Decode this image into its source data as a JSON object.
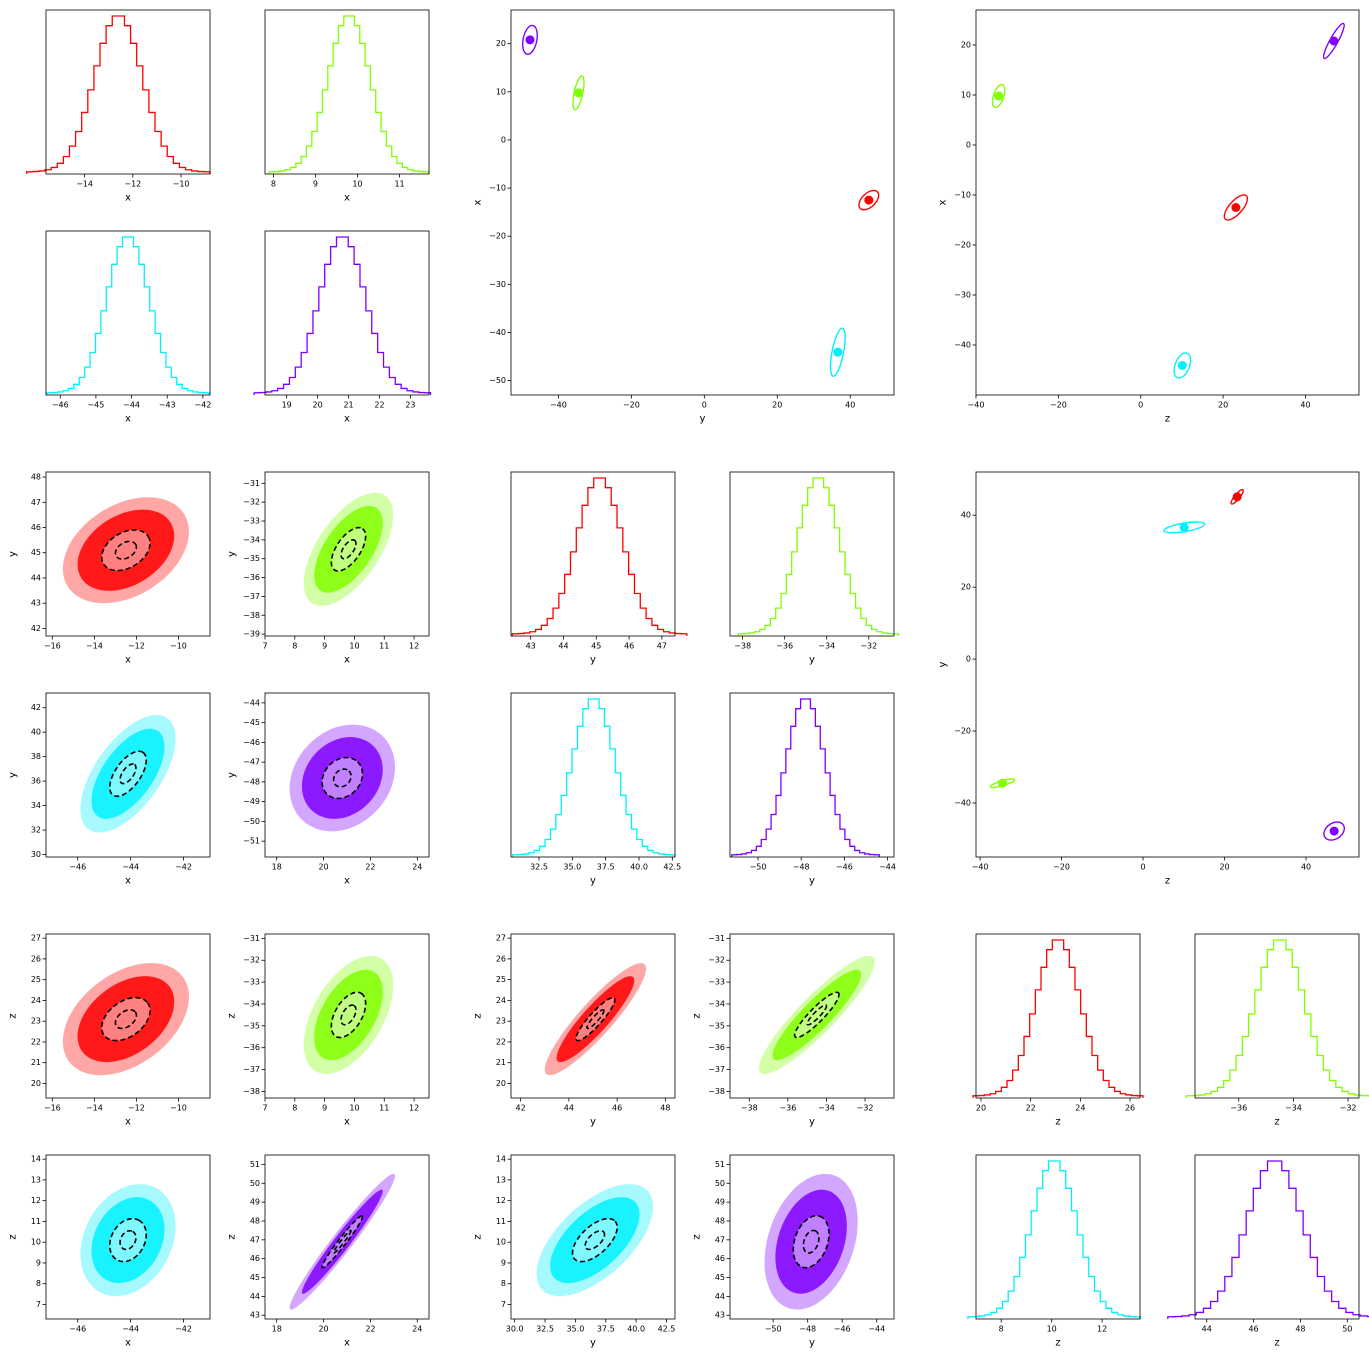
{
  "chart_data": [
    {
      "type": "hist",
      "xlabel": "x",
      "xlim": [
        -15.6,
        -8.8
      ],
      "xticks": [
        {
          "value": -14,
          "label": "−14"
        },
        {
          "value": -12,
          "label": "−12"
        },
        {
          "value": -10,
          "label": "−10"
        }
      ],
      "series": [
        {
          "color": "#ff0000",
          "mean": -12.6,
          "std": 1.0
        }
      ]
    },
    {
      "type": "hist",
      "xlabel": "x",
      "xlim": [
        7.8,
        11.7
      ],
      "xticks": [
        8,
        9,
        10,
        11
      ],
      "series": [
        {
          "color": "#80ff00",
          "mean": 9.8,
          "std": 0.5
        }
      ]
    },
    {
      "type": "hist",
      "xlabel": "x",
      "xlim": [
        -46.4,
        -41.8
      ],
      "xticks": [
        {
          "value": -46,
          "label": "−46"
        },
        {
          "value": -45,
          "label": "−45"
        },
        {
          "value": -44,
          "label": "−44"
        },
        {
          "value": -43,
          "label": "−43"
        },
        {
          "value": -42,
          "label": "−42"
        }
      ],
      "series": [
        {
          "color": "#00f0ff",
          "mean": -44.1,
          "std": 0.6
        }
      ]
    },
    {
      "type": "hist",
      "xlabel": "x",
      "xlim": [
        18.3,
        23.6
      ],
      "xticks": [
        19,
        20,
        21,
        22,
        23
      ],
      "series": [
        {
          "color": "#8000ff",
          "mean": 20.8,
          "std": 0.75
        }
      ]
    },
    {
      "type": "means",
      "xlabel": "y",
      "ylabel": "x",
      "xlim": [
        -53,
        52
      ],
      "ylim": [
        -53,
        27
      ],
      "xticks": [
        {
          "value": -40,
          "label": "−40"
        },
        {
          "value": -20,
          "label": "−20"
        },
        0,
        20,
        40
      ],
      "yticks": [
        {
          "value": -50,
          "label": "−50"
        },
        {
          "value": -40,
          "label": "−40"
        },
        {
          "value": -30,
          "label": "−30"
        },
        {
          "value": -20,
          "label": "−20"
        },
        {
          "value": -10,
          "label": "−10"
        },
        0,
        10,
        20
      ],
      "series": [
        {
          "color": "#ff0000",
          "x": 45.1,
          "y": -12.5,
          "sx": 2.7,
          "sy": 2.0,
          "rho": 0.5
        },
        {
          "color": "#80ff00",
          "x": -34.5,
          "y": 9.8,
          "sx": 1.5,
          "sy": 3.5,
          "rho": 0.6
        },
        {
          "color": "#00f0ff",
          "x": 36.6,
          "y": -44.1,
          "sx": 2.0,
          "sy": 5.0,
          "rho": 0.6
        },
        {
          "color": "#8000ff",
          "x": -47.8,
          "y": 20.8,
          "sx": 2.0,
          "sy": 3.0,
          "rho": 0.3
        }
      ]
    },
    {
      "type": "means",
      "xlabel": "z",
      "ylabel": "x",
      "xlim": [
        -40,
        53
      ],
      "ylim": [
        -50,
        27
      ],
      "xticks": [
        {
          "value": -40,
          "label": "−40"
        },
        {
          "value": -20,
          "label": "−20"
        },
        0,
        20,
        40
      ],
      "yticks": [
        {
          "value": -40,
          "label": "−40"
        },
        {
          "value": -30,
          "label": "−30"
        },
        {
          "value": -20,
          "label": "−20"
        },
        {
          "value": -10,
          "label": "−10"
        },
        0,
        10,
        20
      ],
      "series": [
        {
          "color": "#ff0000",
          "x": 23.1,
          "y": -12.5,
          "sx": 2.8,
          "sy": 2.5,
          "rho": 0.7
        },
        {
          "color": "#80ff00",
          "x": -34.5,
          "y": 9.8,
          "sx": 1.5,
          "sy": 2.3,
          "rho": 0.5
        },
        {
          "color": "#00f0ff",
          "x": 10.1,
          "y": -44.1,
          "sx": 2.0,
          "sy": 2.5,
          "rho": 0.4
        },
        {
          "color": "#8000ff",
          "x": 46.9,
          "y": 20.8,
          "sx": 2.5,
          "sy": 3.5,
          "rho": 0.9
        }
      ]
    },
    {
      "type": "scatter",
      "xlabel": "x",
      "ylabel": "y",
      "xlim": [
        -16.3,
        -8.5
      ],
      "ylim": [
        41.7,
        48.2
      ],
      "xticks": [
        {
          "value": -16,
          "label": "−16"
        },
        {
          "value": -14,
          "label": "−14"
        },
        {
          "value": -12,
          "label": "−12"
        },
        {
          "value": -10,
          "label": "−10"
        }
      ],
      "yticks": [
        42,
        43,
        44,
        45,
        46,
        47,
        48
      ],
      "series": [
        {
          "color": "#ff0000",
          "x": -12.5,
          "y": 45.1,
          "sx": 1.0,
          "sy": 0.7,
          "rho": 0.35
        }
      ]
    },
    {
      "type": "scatter",
      "xlabel": "x",
      "ylabel": "y",
      "xlim": [
        7,
        12.5
      ],
      "ylim": [
        -39.1,
        -30.4
      ],
      "xticks": [
        7,
        8,
        9,
        10,
        11,
        12
      ],
      "yticks": [
        {
          "value": -39,
          "label": "−39"
        },
        {
          "value": -38,
          "label": "−38"
        },
        {
          "value": -37,
          "label": "−37"
        },
        {
          "value": -36,
          "label": "−36"
        },
        {
          "value": -35,
          "label": "−35"
        },
        {
          "value": -34,
          "label": "−34"
        },
        {
          "value": -33,
          "label": "−33"
        },
        {
          "value": -32,
          "label": "−32"
        },
        {
          "value": -31,
          "label": "−31"
        }
      ],
      "series": [
        {
          "color": "#80ff00",
          "x": 9.8,
          "y": -34.5,
          "sx": 0.5,
          "sy": 1.0,
          "rho": 0.6
        }
      ]
    },
    {
      "type": "scatter",
      "xlabel": "x",
      "ylabel": "y",
      "xlim": [
        -47.2,
        -41
      ],
      "ylim": [
        29.8,
        43.2
      ],
      "xticks": [
        {
          "value": -46,
          "label": "−46"
        },
        {
          "value": -44,
          "label": "−44"
        },
        {
          "value": -42,
          "label": "−42"
        }
      ],
      "yticks": [
        30,
        32,
        34,
        36,
        38,
        40,
        42
      ],
      "series": [
        {
          "color": "#00f0ff",
          "x": -44.1,
          "y": 36.6,
          "sx": 0.6,
          "sy": 1.6,
          "rho": 0.6
        }
      ]
    },
    {
      "type": "scatter",
      "xlabel": "x",
      "ylabel": "y",
      "xlim": [
        17.5,
        24.5
      ],
      "ylim": [
        -51.8,
        -43.5
      ],
      "xticks": [
        18,
        20,
        22,
        24
      ],
      "yticks": [
        {
          "value": -51,
          "label": "−51"
        },
        {
          "value": -50,
          "label": "−50"
        },
        {
          "value": -49,
          "label": "−49"
        },
        {
          "value": -48,
          "label": "−48"
        },
        {
          "value": -47,
          "label": "−47"
        },
        {
          "value": -46,
          "label": "−46"
        },
        {
          "value": -45,
          "label": "−45"
        },
        {
          "value": -44,
          "label": "−44"
        }
      ],
      "series": [
        {
          "color": "#8000ff",
          "x": 20.8,
          "y": -47.8,
          "sx": 0.75,
          "sy": 0.9,
          "rho": 0.2
        }
      ]
    },
    {
      "type": "hist",
      "xlabel": "y",
      "xlim": [
        42.4,
        47.4
      ],
      "xticks": [
        43,
        44,
        45,
        46,
        47
      ],
      "series": [
        {
          "color": "#ff0000",
          "mean": 45.1,
          "std": 0.7
        }
      ]
    },
    {
      "type": "hist",
      "xlabel": "y",
      "xlim": [
        -38.6,
        -30.8
      ],
      "xticks": [
        {
          "value": -38,
          "label": "−38"
        },
        {
          "value": -36,
          "label": "−36"
        },
        {
          "value": -34,
          "label": "−34"
        },
        {
          "value": -32,
          "label": "−32"
        }
      ],
      "series": [
        {
          "color": "#80ff00",
          "mean": -34.4,
          "std": 1.0
        }
      ]
    },
    {
      "type": "hist",
      "xlabel": "y",
      "xlim": [
        30.4,
        42.7
      ],
      "xticks": [
        32.5,
        {
          "value": 35,
          "label": "35.0"
        },
        37.5,
        {
          "value": 40,
          "label": "40.0"
        },
        42.5
      ],
      "series": [
        {
          "color": "#00f0ff",
          "mean": 36.6,
          "std": 1.6
        }
      ]
    },
    {
      "type": "hist",
      "xlabel": "y",
      "xlim": [
        -51.3,
        -43.7
      ],
      "xticks": [
        {
          "value": -50,
          "label": "−50"
        },
        {
          "value": -48,
          "label": "−48"
        },
        {
          "value": -46,
          "label": "−46"
        },
        {
          "value": -44,
          "label": "−44"
        }
      ],
      "series": [
        {
          "color": "#8000ff",
          "mean": -47.8,
          "std": 0.9
        }
      ]
    },
    {
      "type": "means",
      "xlabel": "z",
      "ylabel": "y",
      "xlim": [
        -41,
        53
      ],
      "ylim": [
        -55,
        52
      ],
      "xticks": [
        {
          "value": -40,
          "label": "−40"
        },
        {
          "value": -20,
          "label": "−20"
        },
        0,
        20,
        40
      ],
      "yticks": [
        {
          "value": -40,
          "label": "−40"
        },
        {
          "value": -20,
          "label": "−20"
        },
        0,
        20,
        40
      ],
      "series": [
        {
          "color": "#ff0000",
          "x": 23.1,
          "y": 45.1,
          "sx": 1.5,
          "sy": 2.0,
          "rho": 0.85
        },
        {
          "color": "#00f0ff",
          "x": 10.1,
          "y": 36.6,
          "sx": 5.0,
          "sy": 1.5,
          "rho": 0.6
        },
        {
          "color": "#80ff00",
          "x": -34.5,
          "y": -34.5,
          "sx": 3.0,
          "sy": 1.2,
          "rho": 0.8
        },
        {
          "color": "#8000ff",
          "x": 46.9,
          "y": -47.8,
          "sx": 2.5,
          "sy": 2.5,
          "rho": 0.3
        }
      ]
    },
    {
      "type": "scatter",
      "xlabel": "x",
      "ylabel": "z",
      "xlim": [
        -16.3,
        -8.5
      ],
      "ylim": [
        19.3,
        27.2
      ],
      "xticks": [
        {
          "value": -16,
          "label": "−16"
        },
        {
          "value": -14,
          "label": "−14"
        },
        {
          "value": -12,
          "label": "−12"
        },
        {
          "value": -10,
          "label": "−10"
        }
      ],
      "yticks": [
        20,
        21,
        22,
        23,
        24,
        25,
        26,
        27
      ],
      "series": [
        {
          "color": "#ff0000",
          "x": -12.5,
          "y": 23.1,
          "sx": 1.0,
          "sy": 0.9,
          "rho": 0.4
        }
      ]
    },
    {
      "type": "scatter",
      "xlabel": "x",
      "ylabel": "z",
      "xlim": [
        7,
        12.5
      ],
      "ylim": [
        -38.3,
        -30.8
      ],
      "xticks": [
        7,
        8,
        9,
        10,
        11,
        12
      ],
      "yticks": [
        {
          "value": -38,
          "label": "−38"
        },
        {
          "value": -37,
          "label": "−37"
        },
        {
          "value": -36,
          "label": "−36"
        },
        {
          "value": -35,
          "label": "−35"
        },
        {
          "value": -34,
          "label": "−34"
        },
        {
          "value": -33,
          "label": "−33"
        },
        {
          "value": -32,
          "label": "−32"
        },
        {
          "value": -31,
          "label": "−31"
        }
      ],
      "series": [
        {
          "color": "#80ff00",
          "x": 9.8,
          "y": -34.5,
          "sx": 0.5,
          "sy": 0.9,
          "rho": 0.5
        }
      ]
    },
    {
      "type": "scatter",
      "xlabel": "x",
      "ylabel": "z",
      "xlim": [
        -47.2,
        -41
      ],
      "ylim": [
        6.3,
        14.2
      ],
      "xticks": [
        {
          "value": -46,
          "label": "−46"
        },
        {
          "value": -44,
          "label": "−44"
        },
        {
          "value": -42,
          "label": "−42"
        }
      ],
      "yticks": [
        7,
        8,
        9,
        10,
        11,
        12,
        13,
        14
      ],
      "series": [
        {
          "color": "#00f0ff",
          "x": -44.1,
          "y": 10.1,
          "sx": 0.6,
          "sy": 0.9,
          "rho": 0.25
        }
      ]
    },
    {
      "type": "scatter",
      "xlabel": "x",
      "ylabel": "z",
      "xlim": [
        17.5,
        24.5
      ],
      "ylim": [
        42.8,
        51.5
      ],
      "xticks": [
        18,
        20,
        22,
        24
      ],
      "yticks": [
        43,
        44,
        45,
        46,
        47,
        48,
        49,
        50,
        51
      ],
      "series": [
        {
          "color": "#8000ff",
          "x": 20.8,
          "y": 46.9,
          "sx": 0.75,
          "sy": 1.2,
          "rho": 0.97
        }
      ]
    },
    {
      "type": "scatter",
      "xlabel": "y",
      "ylabel": "z",
      "xlim": [
        41.6,
        48.4
      ],
      "ylim": [
        19.3,
        27.2
      ],
      "xticks": [
        42,
        44,
        46,
        48
      ],
      "yticks": [
        20,
        21,
        22,
        23,
        24,
        25,
        26,
        27
      ],
      "series": [
        {
          "color": "#ff0000",
          "x": 45.1,
          "y": 23.1,
          "sx": 0.7,
          "sy": 0.9,
          "rho": 0.9
        }
      ]
    },
    {
      "type": "scatter",
      "xlabel": "y",
      "ylabel": "z",
      "xlim": [
        -39,
        -30.5
      ],
      "ylim": [
        -38.3,
        -30.8
      ],
      "xticks": [
        {
          "value": -38,
          "label": "−38"
        },
        {
          "value": -36,
          "label": "−36"
        },
        {
          "value": -34,
          "label": "−34"
        },
        {
          "value": -32,
          "label": "−32"
        }
      ],
      "yticks": [
        {
          "value": -38,
          "label": "−38"
        },
        {
          "value": -37,
          "label": "−37"
        },
        {
          "value": -36,
          "label": "−36"
        },
        {
          "value": -35,
          "label": "−35"
        },
        {
          "value": -34,
          "label": "−34"
        },
        {
          "value": -33,
          "label": "−33"
        },
        {
          "value": -32,
          "label": "−32"
        },
        {
          "value": -31,
          "label": "−31"
        }
      ],
      "series": [
        {
          "color": "#80ff00",
          "x": -34.5,
          "y": -34.5,
          "sx": 1.0,
          "sy": 0.9,
          "rho": 0.9
        }
      ]
    },
    {
      "type": "scatter",
      "xlabel": "y",
      "ylabel": "z",
      "xlim": [
        29.7,
        43.2
      ],
      "ylim": [
        6.3,
        14.2
      ],
      "xticks": [
        {
          "value": 30,
          "label": "30.0"
        },
        32.5,
        {
          "value": 35,
          "label": "35.0"
        },
        37.5,
        {
          "value": 40,
          "label": "40.0"
        },
        42.5
      ],
      "yticks": [
        7,
        8,
        9,
        10,
        11,
        12,
        13,
        14
      ],
      "series": [
        {
          "color": "#00f0ff",
          "x": 36.6,
          "y": 10.1,
          "sx": 1.6,
          "sy": 0.9,
          "rho": 0.6
        }
      ]
    },
    {
      "type": "scatter",
      "xlabel": "y",
      "ylabel": "z",
      "xlim": [
        -52.5,
        -43
      ],
      "ylim": [
        42.8,
        51.5
      ],
      "xticks": [
        {
          "value": -50,
          "label": "−50"
        },
        {
          "value": -48,
          "label": "−48"
        },
        {
          "value": -46,
          "label": "−46"
        },
        {
          "value": -44,
          "label": "−44"
        }
      ],
      "yticks": [
        43,
        44,
        45,
        46,
        47,
        48,
        49,
        50,
        51
      ],
      "series": [
        {
          "color": "#8000ff",
          "x": -47.8,
          "y": 46.9,
          "sx": 0.9,
          "sy": 1.2,
          "rho": 0.3
        }
      ]
    },
    {
      "type": "hist",
      "xlabel": "z",
      "xlim": [
        19.8,
        26.4
      ],
      "xticks": [
        20,
        22,
        24,
        26
      ],
      "series": [
        {
          "color": "#ff0000",
          "mean": 23.1,
          "std": 0.9
        }
      ]
    },
    {
      "type": "hist",
      "xlabel": "z",
      "xlim": [
        -37.6,
        -31.6
      ],
      "xticks": [
        {
          "value": -36,
          "label": "−36"
        },
        {
          "value": -34,
          "label": "−34"
        },
        {
          "value": -32,
          "label": "−32"
        }
      ],
      "series": [
        {
          "color": "#80ff00",
          "mean": -34.5,
          "std": 0.9
        }
      ]
    },
    {
      "type": "hist",
      "xlabel": "z",
      "xlim": [
        7,
        13.5
      ],
      "xticks": [
        8,
        10,
        12
      ],
      "series": [
        {
          "color": "#00f0ff",
          "mean": 10.1,
          "std": 0.9
        }
      ]
    },
    {
      "type": "hist",
      "xlabel": "z",
      "xlim": [
        43.5,
        50.5
      ],
      "xticks": [
        44,
        46,
        48,
        50
      ],
      "series": [
        {
          "color": "#8000ff",
          "mean": 46.9,
          "std": 1.2
        }
      ]
    }
  ]
}
